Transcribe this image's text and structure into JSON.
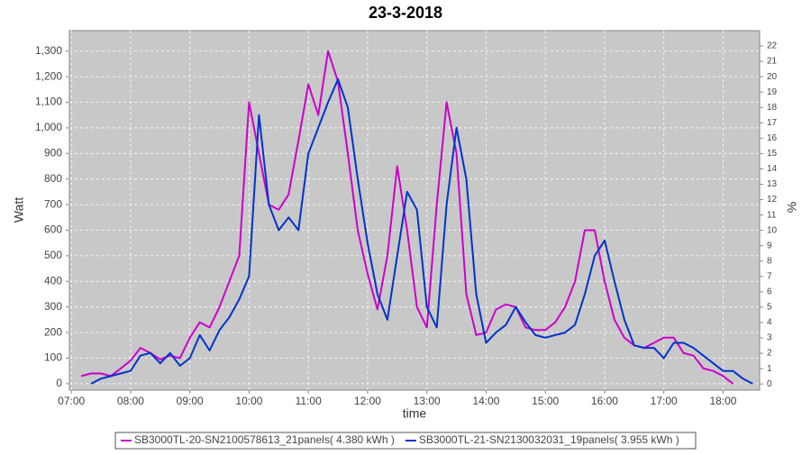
{
  "chart_data": {
    "type": "line",
    "title": "23-3-2018",
    "x_label": "time",
    "y_label": "Watt",
    "y2_label": "%",
    "x": [
      "07:00",
      "07:10",
      "07:20",
      "07:30",
      "07:40",
      "07:50",
      "08:00",
      "08:10",
      "08:20",
      "08:30",
      "08:40",
      "08:50",
      "09:00",
      "09:10",
      "09:20",
      "09:30",
      "09:40",
      "09:50",
      "10:00",
      "10:10",
      "10:20",
      "10:30",
      "10:40",
      "10:50",
      "11:00",
      "11:10",
      "11:20",
      "11:30",
      "11:40",
      "11:50",
      "12:00",
      "12:10",
      "12:20",
      "12:30",
      "12:40",
      "12:50",
      "13:00",
      "13:10",
      "13:20",
      "13:30",
      "13:40",
      "13:50",
      "14:00",
      "14:10",
      "14:20",
      "14:30",
      "14:40",
      "14:50",
      "15:00",
      "15:10",
      "15:20",
      "15:30",
      "15:40",
      "15:50",
      "16:00",
      "16:10",
      "16:20",
      "16:30",
      "16:40",
      "16:50",
      "17:00",
      "17:10",
      "17:20",
      "17:30",
      "17:40",
      "17:50",
      "18:00",
      "18:10",
      "18:20",
      "18:30"
    ],
    "xlim": [
      "06:58",
      "18:37"
    ],
    "xticks": [
      "07:00",
      "08:00",
      "09:00",
      "10:00",
      "11:00",
      "12:00",
      "13:00",
      "14:00",
      "15:00",
      "16:00",
      "17:00",
      "18:00"
    ],
    "ylim": [
      -25,
      1380
    ],
    "yticks": [
      0,
      100,
      200,
      300,
      400,
      500,
      600,
      700,
      800,
      900,
      {
        "value": 1000,
        "label": "1,000"
      },
      {
        "value": 1100,
        "label": "1,100"
      },
      {
        "value": 1200,
        "label": "1,200"
      },
      {
        "value": 1300,
        "label": "1,300"
      }
    ],
    "y2lim": [
      -0.4,
      23
    ],
    "y2ticks": [
      0,
      1,
      2,
      3,
      4,
      5,
      6,
      7,
      8,
      9,
      10,
      11,
      12,
      13,
      14,
      15,
      16,
      17,
      18,
      19,
      20,
      21,
      22
    ],
    "grid": true,
    "legend": "bottom",
    "series": [
      {
        "name": "SB3000TL-20-SN2100578613_21panels( 4.380 kWh )",
        "color": "#cc00cc",
        "values": [
          null,
          30,
          40,
          40,
          30,
          60,
          90,
          140,
          120,
          95,
          110,
          100,
          180,
          240,
          220,
          300,
          400,
          500,
          1100,
          900,
          700,
          680,
          740,
          950,
          1170,
          1050,
          1300,
          1180,
          900,
          600,
          430,
          290,
          500,
          850,
          600,
          300,
          220,
          700,
          1100,
          900,
          350,
          190,
          200,
          290,
          310,
          300,
          220,
          210,
          210,
          240,
          300,
          400,
          600,
          600,
          400,
          250,
          180,
          150,
          140,
          160,
          180,
          180,
          120,
          110,
          60,
          50,
          30,
          0,
          null,
          null
        ]
      },
      {
        "name": "SB3000TL-21-SN2130032031_19panels( 3.955 kWh )",
        "color": "#0033cc",
        "values": [
          null,
          null,
          0,
          20,
          30,
          40,
          50,
          110,
          120,
          80,
          120,
          70,
          100,
          190,
          130,
          210,
          260,
          330,
          420,
          1050,
          700,
          600,
          650,
          600,
          900,
          1000,
          1100,
          1190,
          1080,
          800,
          550,
          350,
          250,
          500,
          750,
          680,
          300,
          220,
          700,
          1000,
          800,
          350,
          160,
          200,
          230,
          300,
          240,
          190,
          180,
          190,
          200,
          230,
          350,
          500,
          560,
          400,
          250,
          150,
          140,
          140,
          100,
          160,
          160,
          140,
          110,
          80,
          50,
          50,
          20,
          0
        ]
      }
    ]
  }
}
